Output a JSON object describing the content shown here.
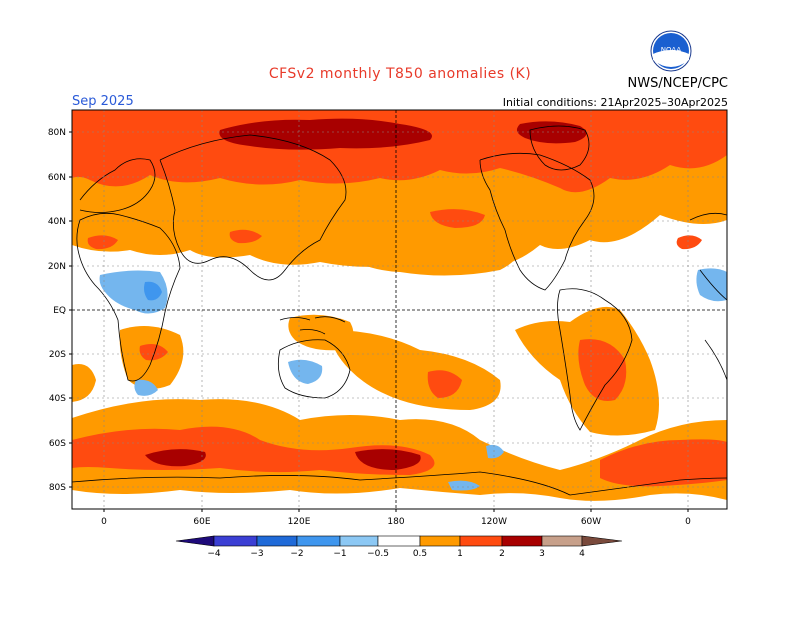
{
  "header": {
    "title": "CFSv2 monthly T850 anomalies (K)",
    "agency": "NWS/NCEP/CPC",
    "logo_text": "NOAA",
    "month": "Sep 2025",
    "initial_conditions": "Initial conditions: 21Apr2025–30Apr2025"
  },
  "colors": {
    "title": "#e83a2a",
    "month": "#2a5ad8",
    "ocean_bg": "#ffffff",
    "anom_0_5": "#ff9a00",
    "anom_1": "#ff4b10",
    "anom_2": "#a80000",
    "anom_neg": "#74b6ee"
  },
  "axes": {
    "lat_labels": [
      "80N",
      "60N",
      "40N",
      "20N",
      "EQ",
      "20S",
      "40S",
      "60S",
      "80S"
    ],
    "lon_labels": [
      "0",
      "60E",
      "120E",
      "180",
      "120W",
      "60W",
      "0"
    ]
  },
  "colorbar": {
    "tick_labels": [
      "−4",
      "−3",
      "−2",
      "−1",
      "−0.5",
      "0.5",
      "1",
      "2",
      "3",
      "4"
    ],
    "colors": [
      "#1e0a7a",
      "#3b3fd4",
      "#1f6ad8",
      "#3f96ee",
      "#8cc8f4",
      "#ffffff",
      "#ff9a00",
      "#ff4b10",
      "#a80000",
      "#6e0000",
      "#c7a08a",
      "#7a4a3c"
    ]
  }
}
